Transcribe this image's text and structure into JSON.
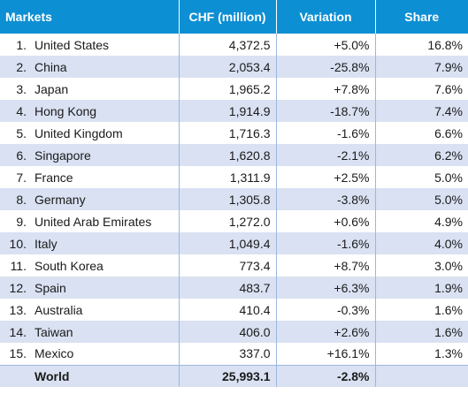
{
  "headers": {
    "markets": "Markets",
    "chf": "CHF (million)",
    "variation": "Variation",
    "share": "Share"
  },
  "rows": [
    {
      "rank": "1.",
      "market": "United States",
      "chf": "4,372.5",
      "variation": "+5.0%",
      "share": "16.8%"
    },
    {
      "rank": "2.",
      "market": "China",
      "chf": "2,053.4",
      "variation": "-25.8%",
      "share": "7.9%"
    },
    {
      "rank": "3.",
      "market": "Japan",
      "chf": "1,965.2",
      "variation": "+7.8%",
      "share": "7.6%"
    },
    {
      "rank": "4.",
      "market": "Hong Kong",
      "chf": "1,914.9",
      "variation": "-18.7%",
      "share": "7.4%"
    },
    {
      "rank": "5.",
      "market": "United Kingdom",
      "chf": "1,716.3",
      "variation": "-1.6%",
      "share": "6.6%"
    },
    {
      "rank": "6.",
      "market": "Singapore",
      "chf": "1,620.8",
      "variation": "-2.1%",
      "share": "6.2%"
    },
    {
      "rank": "7.",
      "market": "France",
      "chf": "1,311.9",
      "variation": "+2.5%",
      "share": "5.0%"
    },
    {
      "rank": "8.",
      "market": "Germany",
      "chf": "1,305.8",
      "variation": "-3.8%",
      "share": "5.0%"
    },
    {
      "rank": "9.",
      "market": "United Arab Emirates",
      "chf": "1,272.0",
      "variation": "+0.6%",
      "share": "4.9%"
    },
    {
      "rank": "10.",
      "market": "Italy",
      "chf": "1,049.4",
      "variation": "-1.6%",
      "share": "4.0%"
    },
    {
      "rank": "11.",
      "market": "South Korea",
      "chf": "773.4",
      "variation": "+8.7%",
      "share": "3.0%"
    },
    {
      "rank": "12.",
      "market": "Spain",
      "chf": "483.7",
      "variation": "+6.3%",
      "share": "1.9%"
    },
    {
      "rank": "13.",
      "market": "Australia",
      "chf": "410.4",
      "variation": "-0.3%",
      "share": "1.6%"
    },
    {
      "rank": "14.",
      "market": "Taiwan",
      "chf": "406.0",
      "variation": "+2.6%",
      "share": "1.6%"
    },
    {
      "rank": "15.",
      "market": "Mexico",
      "chf": "337.0",
      "variation": "+16.1%",
      "share": "1.3%"
    }
  ],
  "total": {
    "market": "World",
    "chf": "25,993.1",
    "variation": "-2.8%",
    "share": ""
  },
  "colors": {
    "header_bg": "#0d8fd3",
    "header_text": "#ffffff",
    "band_bg": "#d9e1f2",
    "rule": "#9bb7e0"
  }
}
